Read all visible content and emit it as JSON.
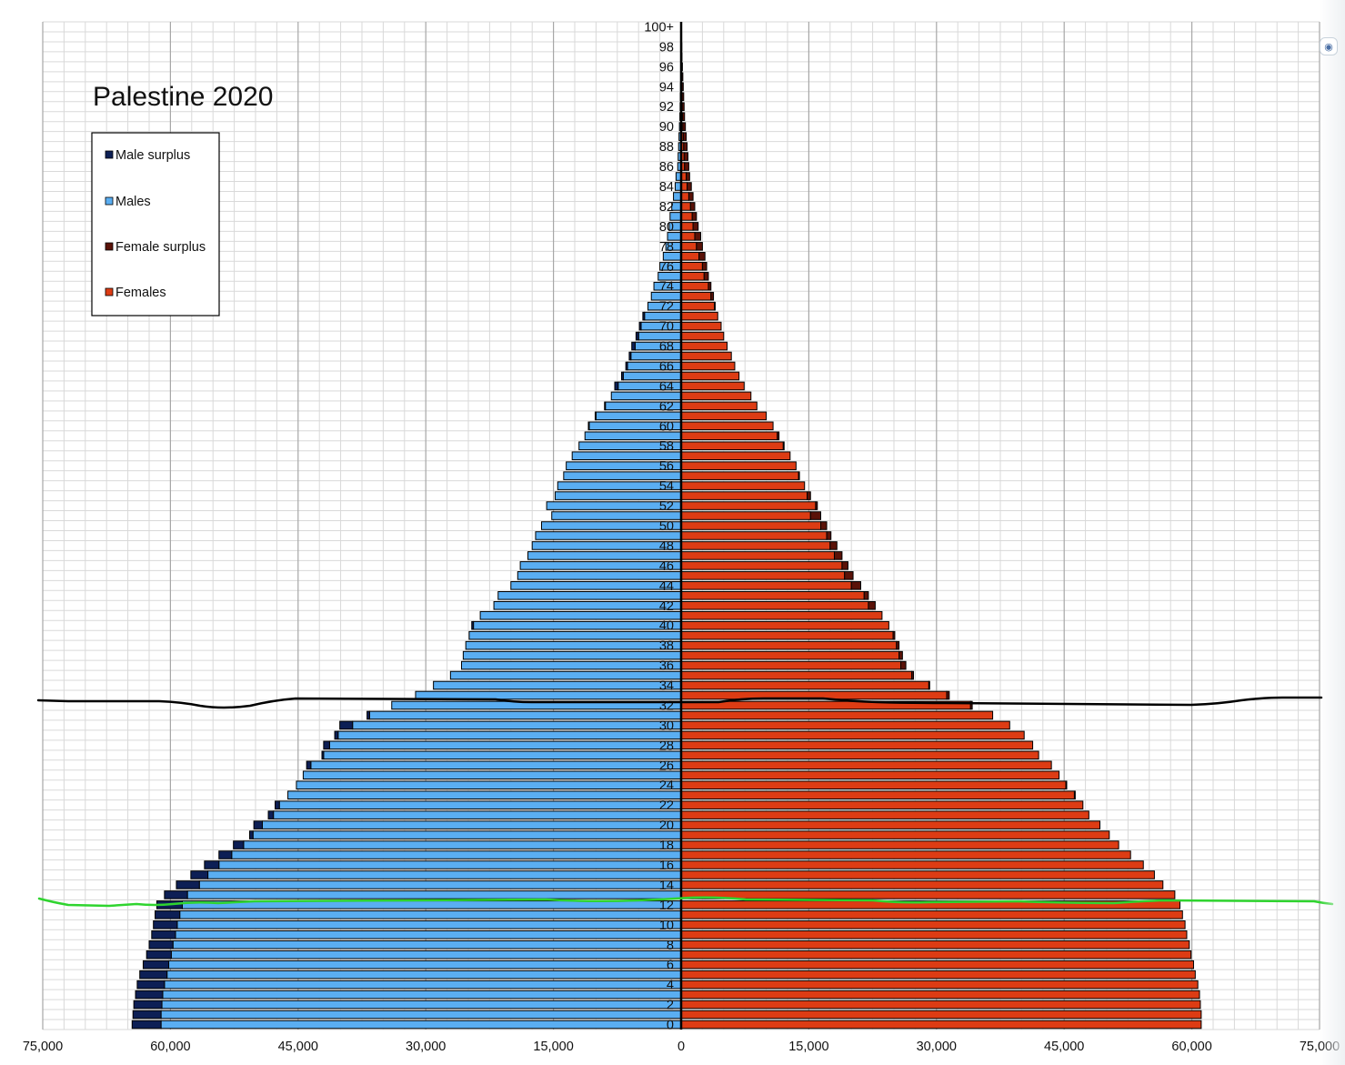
{
  "colors": {
    "male": "#5aaef2",
    "male_surplus": "#0d1f55",
    "female": "#dd3c14",
    "female_surplus": "#5a1208",
    "grid_major": "#a7a7a7",
    "grid_minor": "#d9d9d9",
    "annotation_black": "#000000",
    "annotation_green": "#2fd42f"
  },
  "screenshot_button_icon": "screenshot-icon",
  "chart_data": {
    "type": "bar",
    "orientation": "horizontal",
    "title": "Palestine 2020",
    "xlim": [
      -75000,
      75000
    ],
    "x_tick_values": [
      -75000,
      -60000,
      -45000,
      -30000,
      -15000,
      0,
      15000,
      30000,
      45000,
      60000,
      75000
    ],
    "x_tick_labels": [
      "75,000",
      "60,000",
      "45,000",
      "30,000",
      "15,000",
      "0",
      "15,000",
      "30,000",
      "45,000",
      "60,000",
      "75,000"
    ],
    "y_tick_labels": [
      "0",
      "2",
      "4",
      "6",
      "8",
      "10",
      "12",
      "14",
      "16",
      "18",
      "20",
      "22",
      "24",
      "26",
      "28",
      "30",
      "32",
      "34",
      "36",
      "38",
      "40",
      "42",
      "44",
      "46",
      "48",
      "50",
      "52",
      "54",
      "56",
      "58",
      "60",
      "62",
      "64",
      "66",
      "68",
      "70",
      "72",
      "74",
      "76",
      "78",
      "80",
      "82",
      "84",
      "86",
      "88",
      "90",
      "92",
      "94",
      "96",
      "98",
      "100+"
    ],
    "grid": true,
    "legend_position": "top-left",
    "legend": [
      "Male surplus",
      "Males",
      "Female surplus",
      "Females"
    ],
    "ages": [
      "0",
      "1",
      "2",
      "3",
      "4",
      "5",
      "6",
      "7",
      "8",
      "9",
      "10",
      "11",
      "12",
      "13",
      "14",
      "15",
      "16",
      "17",
      "18",
      "19",
      "20",
      "21",
      "22",
      "23",
      "24",
      "25",
      "26",
      "27",
      "28",
      "29",
      "30",
      "31",
      "32",
      "33",
      "34",
      "35",
      "36",
      "37",
      "38",
      "39",
      "40",
      "41",
      "42",
      "43",
      "44",
      "45",
      "46",
      "47",
      "48",
      "49",
      "50",
      "51",
      "52",
      "53",
      "54",
      "55",
      "56",
      "57",
      "58",
      "59",
      "60",
      "61",
      "62",
      "63",
      "64",
      "65",
      "66",
      "67",
      "68",
      "69",
      "70",
      "71",
      "72",
      "73",
      "74",
      "75",
      "76",
      "77",
      "78",
      "79",
      "80",
      "81",
      "82",
      "83",
      "84",
      "85",
      "86",
      "87",
      "88",
      "89",
      "90",
      "91",
      "92",
      "93",
      "94",
      "95",
      "96",
      "97",
      "98",
      "99",
      "100+"
    ],
    "series": [
      {
        "name": "Males",
        "values": [
          64500,
          64400,
          64300,
          64100,
          63900,
          63600,
          63200,
          62800,
          62500,
          62200,
          62000,
          61800,
          61600,
          60700,
          59300,
          57600,
          56000,
          54300,
          52600,
          50700,
          50200,
          48500,
          47700,
          46200,
          45200,
          44400,
          44000,
          42200,
          42000,
          40700,
          40100,
          36900,
          34000,
          31200,
          29100,
          27100,
          25800,
          25600,
          25300,
          24900,
          24600,
          23600,
          22000,
          21500,
          20000,
          19200,
          18900,
          18000,
          17500,
          17100,
          16400,
          15200,
          15800,
          14800,
          14500,
          13800,
          13500,
          12800,
          12000,
          11300,
          10900,
          10100,
          9000,
          8200,
          7800,
          7000,
          6500,
          6100,
          5800,
          5300,
          4900,
          4500,
          3900,
          3500,
          3200,
          2700,
          2500,
          2100,
          1800,
          1600,
          1400,
          1300,
          1100,
          900,
          700,
          600,
          400,
          350,
          300,
          250,
          200,
          150,
          120,
          100,
          80,
          60,
          40,
          30,
          20,
          10,
          5
        ]
      },
      {
        "name": "Females",
        "values": [
          61100,
          61100,
          61000,
          60900,
          60700,
          60400,
          60200,
          59900,
          59700,
          59400,
          59200,
          58900,
          58600,
          58000,
          56600,
          55600,
          54300,
          52800,
          51400,
          50300,
          49200,
          47900,
          47200,
          46300,
          45300,
          44400,
          43500,
          42000,
          41300,
          40300,
          38600,
          36600,
          34200,
          31500,
          29200,
          27300,
          26400,
          26000,
          25600,
          25100,
          24400,
          23600,
          22800,
          22000,
          21100,
          20200,
          19600,
          18900,
          18300,
          17600,
          17100,
          16400,
          16000,
          15200,
          14500,
          13900,
          13500,
          12800,
          12100,
          11500,
          10800,
          10000,
          8900,
          8200,
          7400,
          6800,
          6300,
          5900,
          5400,
          5000,
          4700,
          4300,
          4000,
          3800,
          3500,
          3200,
          3000,
          2800,
          2500,
          2300,
          2000,
          1800,
          1600,
          1400,
          1200,
          1000,
          900,
          800,
          700,
          600,
          500,
          400,
          350,
          300,
          250,
          200,
          150,
          100,
          80,
          60,
          40
        ]
      }
    ],
    "annotations": [
      {
        "name": "black freehand line",
        "near_age": "32"
      },
      {
        "name": "green freehand line",
        "near_age": "12"
      }
    ]
  }
}
